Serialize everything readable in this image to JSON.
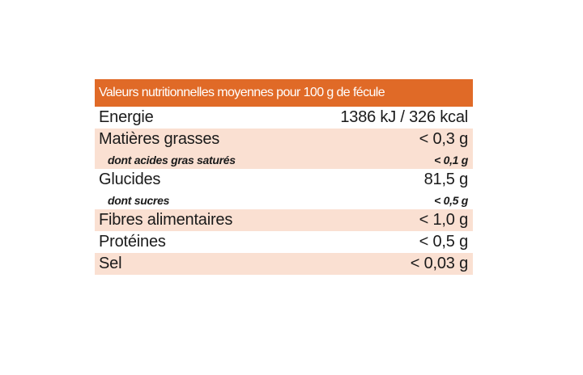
{
  "table": {
    "header": "Valeurs nutritionnelles moyennes pour 100 g de fécule",
    "rows": [
      {
        "label": "Energie",
        "value": "1386 kJ / 326 kcal"
      },
      {
        "label": "Matières grasses",
        "value": "< 0,3 g"
      },
      {
        "label": "dont acides gras saturés",
        "value": "< 0,1 g"
      },
      {
        "label": "Glucides",
        "value": "81,5 g"
      },
      {
        "label": "dont sucres",
        "value": "< 0,5 g"
      },
      {
        "label": "Fibres alimentaires",
        "value": "< 1,0 g"
      },
      {
        "label": "Protéines",
        "value": "< 0,5 g"
      },
      {
        "label": "Sel",
        "value": "< 0,03 g"
      }
    ],
    "colors": {
      "header_bg": "#e06a27",
      "tint_bg": "#fae0d2"
    }
  }
}
